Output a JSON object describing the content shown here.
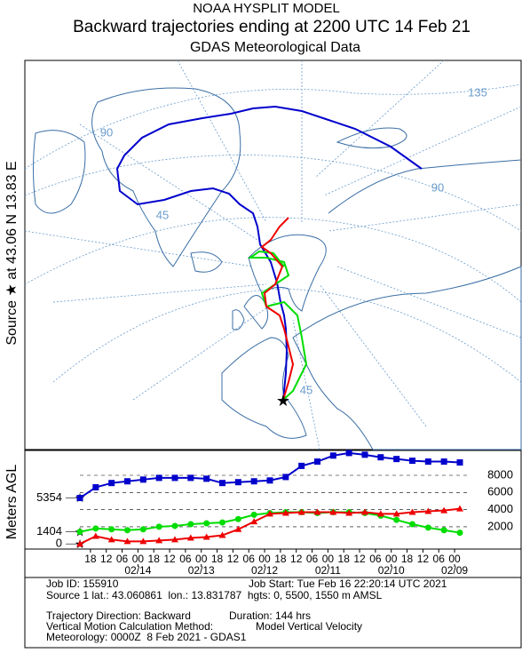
{
  "header": {
    "model": "NOAA HYSPLIT MODEL",
    "title": "Backward trajectories ending at 2200 UTC 14 Feb 21",
    "subtitle": "GDAS Meteorological Data"
  },
  "map": {
    "source_label": "Source ★ at 43.06 N 13.83 E",
    "grid_labels": [
      "135",
      "90",
      "90",
      "45",
      "45"
    ]
  },
  "chart_data": {
    "type": "line",
    "ylabel": "Meters AGL",
    "x": [
      0,
      6,
      12,
      18,
      24,
      30,
      36,
      42,
      48,
      54,
      60,
      66,
      72,
      78,
      84,
      90,
      96,
      102,
      108,
      114,
      120,
      126,
      132,
      138,
      144
    ],
    "xlim": [
      0,
      144
    ],
    "ylim": [
      -600,
      10900
    ],
    "yticks": [
      2000,
      4000,
      6000,
      8000
    ],
    "start_ticks": [
      0,
      1404,
      5354
    ],
    "xticks": [
      {
        "value": 4,
        "label": "18"
      },
      {
        "value": 10,
        "label": "12"
      },
      {
        "value": 16,
        "label": "06"
      },
      {
        "value": 22,
        "label": "00"
      },
      {
        "value": 28,
        "label": "18"
      },
      {
        "value": 34,
        "label": "12"
      },
      {
        "value": 40,
        "label": "06"
      },
      {
        "value": 46,
        "label": "00"
      },
      {
        "value": 52,
        "label": "18"
      },
      {
        "value": 58,
        "label": "12"
      },
      {
        "value": 64,
        "label": "06"
      },
      {
        "value": 70,
        "label": "00"
      },
      {
        "value": 76,
        "label": "18"
      },
      {
        "value": 82,
        "label": "12"
      },
      {
        "value": 88,
        "label": "06"
      },
      {
        "value": 94,
        "label": "00"
      },
      {
        "value": 100,
        "label": "18"
      },
      {
        "value": 106,
        "label": "12"
      },
      {
        "value": 112,
        "label": "06"
      },
      {
        "value": 118,
        "label": "00"
      },
      {
        "value": 124,
        "label": "18"
      },
      {
        "value": 130,
        "label": "12"
      },
      {
        "value": 136,
        "label": "06"
      },
      {
        "value": 142,
        "label": "00"
      }
    ],
    "date_ticks": [
      {
        "value": 22,
        "label": "02/14"
      },
      {
        "value": 46,
        "label": "02/13"
      },
      {
        "value": 70,
        "label": "02/12"
      },
      {
        "value": 94,
        "label": "02/11"
      },
      {
        "value": 118,
        "label": "02/10"
      },
      {
        "value": 142,
        "label": "02/09"
      }
    ],
    "series": [
      {
        "color": "#0000cc",
        "marker": "square",
        "values": [
          5354,
          6600,
          7100,
          7300,
          7500,
          7700,
          7700,
          7700,
          7600,
          7100,
          7200,
          7300,
          7400,
          7800,
          9100,
          9600,
          10300,
          10600,
          10400,
          10100,
          9900,
          9700,
          9600,
          9600,
          9500
        ]
      },
      {
        "color": "#00dd00",
        "marker": "circle",
        "values": [
          1404,
          1800,
          1700,
          1600,
          1700,
          2000,
          2100,
          2300,
          2400,
          2500,
          2900,
          3400,
          3600,
          3700,
          3700,
          3600,
          3700,
          3700,
          3600,
          3300,
          2800,
          2300,
          1900,
          1600,
          1300
        ]
      },
      {
        "color": "#ee0000",
        "marker": "triangle",
        "values": [
          0,
          900,
          500,
          300,
          300,
          400,
          500,
          700,
          800,
          1000,
          1700,
          2600,
          3500,
          3600,
          3700,
          3700,
          3700,
          3600,
          3700,
          3500,
          3500,
          3700,
          3800,
          3900,
          4100
        ]
      }
    ]
  },
  "footer": {
    "job_id": "Job ID: 155910",
    "job_start": "Job Start: Tue Feb 16 22:20:14 UTC 2021",
    "source": "Source 1 lat.: 43.060861  lon.: 13.831787  hgts: 0, 5500, 1550 m AMSL",
    "direction": "Trajectory Direction: Backward",
    "duration": "Duration: 144 hrs",
    "vertical_method": "Vertical Motion Calculation Method:",
    "vertical_value": "Model Vertical Velocity",
    "meteorology": "Meteorology: 0000Z  8 Feb 2021 - GDAS1"
  }
}
